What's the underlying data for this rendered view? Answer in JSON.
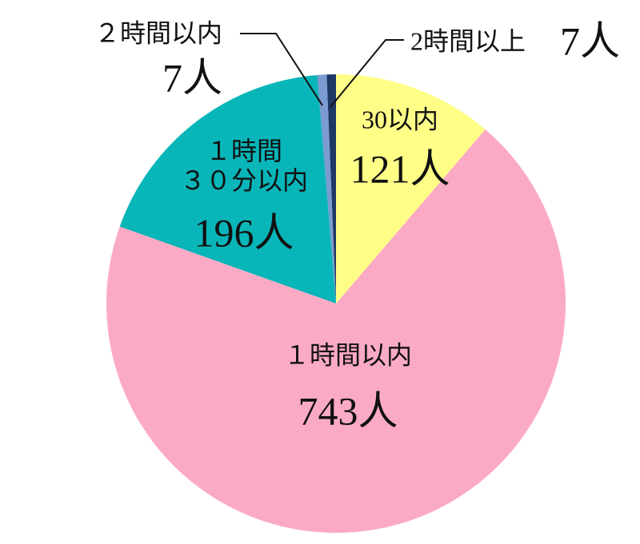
{
  "chart_data": {
    "type": "pie",
    "categories": [
      "30以内",
      "１時間以内",
      "１時間\n３０分以内",
      "２時間以内",
      "2時間以上"
    ],
    "values": [
      121,
      743,
      196,
      7,
      7
    ],
    "value_labels": [
      "121人",
      "743人",
      "196人",
      "7人",
      "7人"
    ],
    "colors": [
      "#ffff88",
      "#fbaac5",
      "#08b5b8",
      "#7b9bd2",
      "#1f3864"
    ]
  }
}
